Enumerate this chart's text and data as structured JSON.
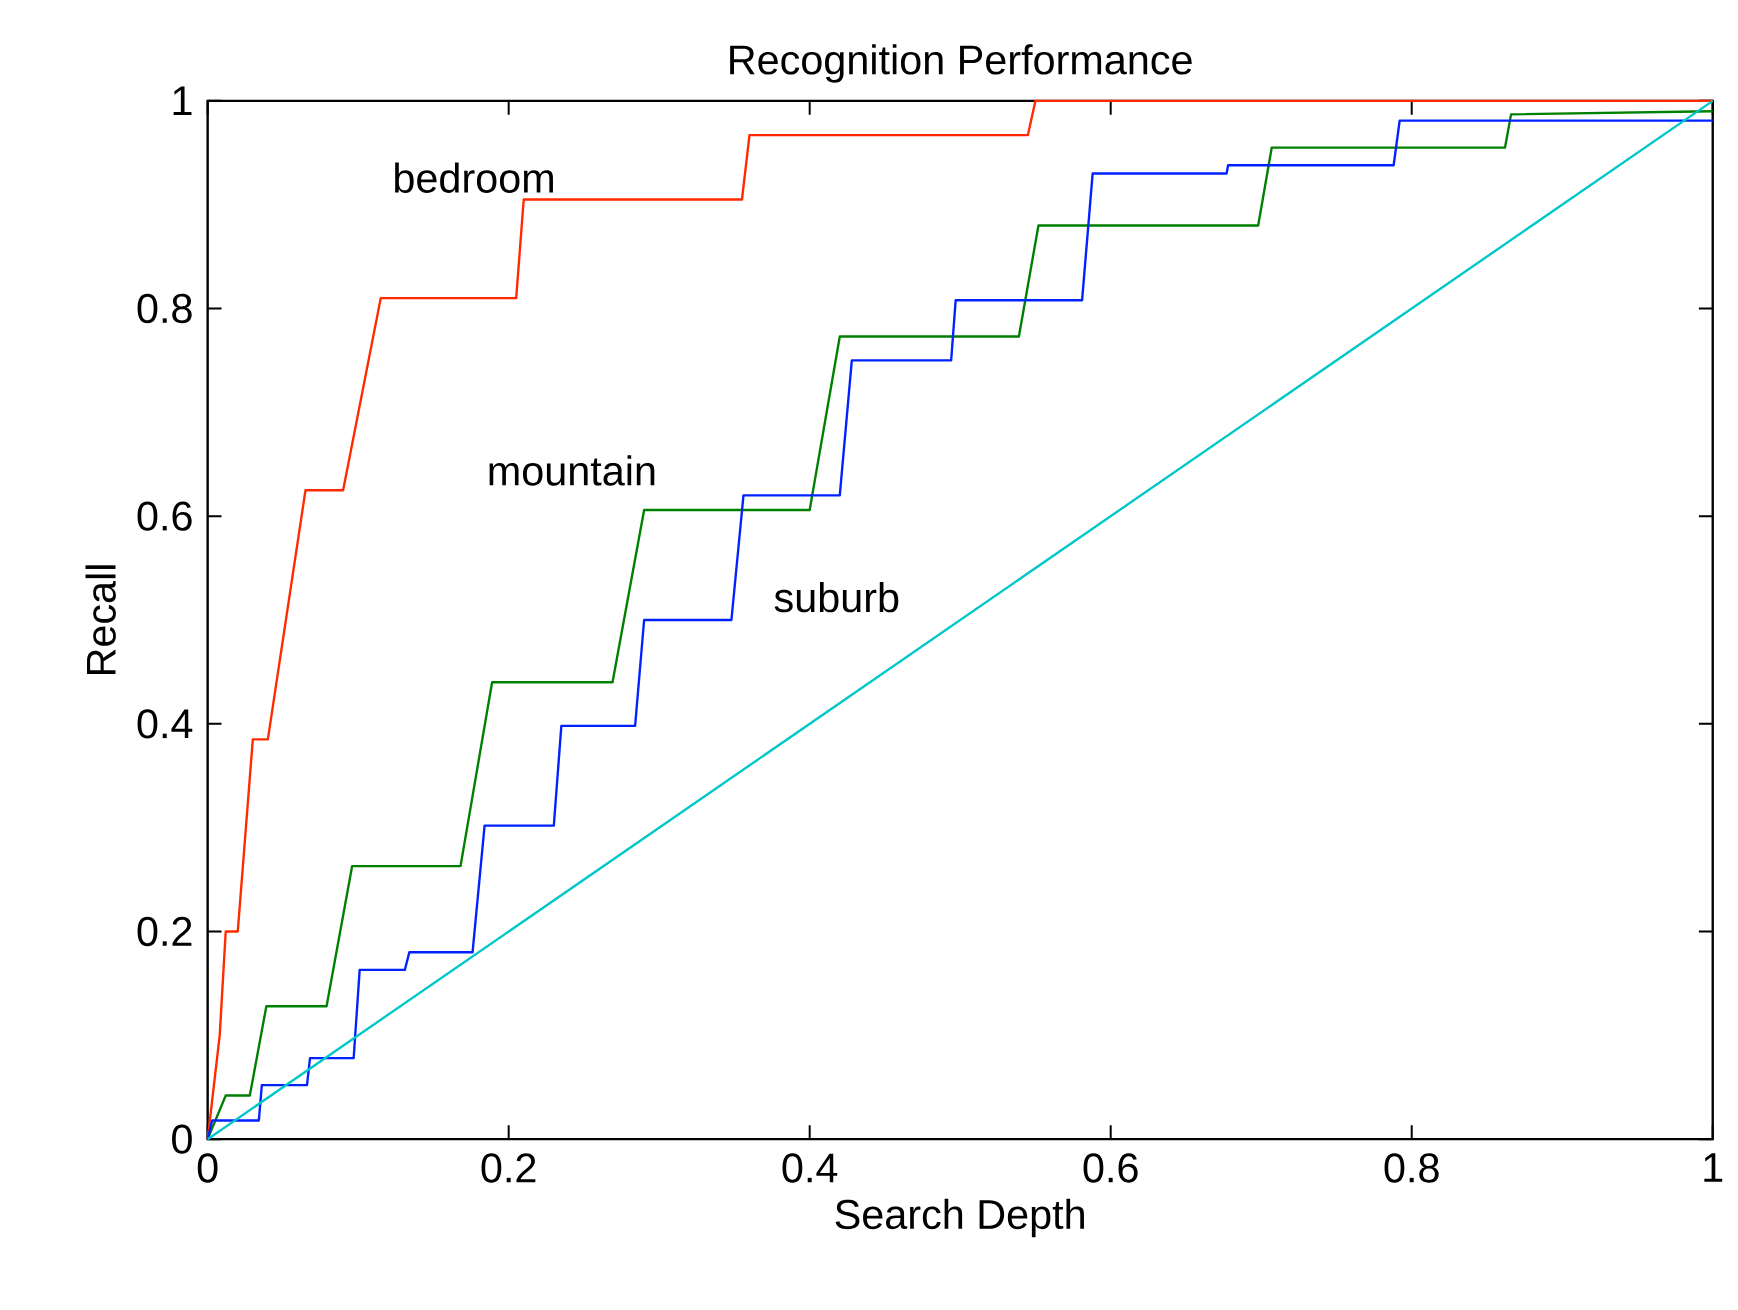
{
  "chart_data": {
    "type": "line",
    "title": "Recognition Performance",
    "xlabel": "Search Depth",
    "ylabel": "Recall",
    "xlim": [
      0,
      1
    ],
    "ylim": [
      0,
      1
    ],
    "xticks": [
      0,
      0.2,
      0.4,
      0.6,
      0.8,
      1
    ],
    "yticks": [
      0,
      0.2,
      0.4,
      0.6,
      0.8,
      1
    ],
    "grid": false,
    "legend": false,
    "series": [
      {
        "name": "bedroom",
        "color": "#ff2a00",
        "x": [
          0,
          0.008,
          0.012,
          0.02,
          0.03,
          0.04,
          0.065,
          0.09,
          0.115,
          0.205,
          0.21,
          0.355,
          0.36,
          0.545,
          0.55,
          1
        ],
        "values": [
          0,
          0.1,
          0.2,
          0.2,
          0.385,
          0.385,
          0.625,
          0.625,
          0.81,
          0.81,
          0.905,
          0.905,
          0.967,
          0.967,
          1,
          1
        ]
      },
      {
        "name": "mountain",
        "color": "#008000",
        "x": [
          0,
          0.012,
          0.028,
          0.039,
          0.079,
          0.096,
          0.168,
          0.189,
          0.269,
          0.29,
          0.4,
          0.42,
          0.539,
          0.552,
          0.698,
          0.707,
          0.862,
          0.866,
          1
        ],
        "values": [
          0,
          0.042,
          0.042,
          0.128,
          0.128,
          0.263,
          0.263,
          0.44,
          0.44,
          0.606,
          0.606,
          0.773,
          0.773,
          0.88,
          0.88,
          0.955,
          0.955,
          0.987,
          0.99
        ]
      },
      {
        "name": "suburb",
        "color": "#0022ff",
        "x": [
          0,
          0.003,
          0.034,
          0.036,
          0.066,
          0.068,
          0.097,
          0.101,
          0.131,
          0.134,
          0.176,
          0.184,
          0.23,
          0.235,
          0.284,
          0.29,
          0.348,
          0.356,
          0.42,
          0.428,
          0.494,
          0.497,
          0.581,
          0.588,
          0.677,
          0.678,
          0.788,
          0.792,
          1
        ],
        "values": [
          0,
          0.018,
          0.018,
          0.052,
          0.052,
          0.078,
          0.078,
          0.163,
          0.163,
          0.18,
          0.18,
          0.302,
          0.302,
          0.398,
          0.398,
          0.5,
          0.5,
          0.62,
          0.62,
          0.75,
          0.75,
          0.808,
          0.808,
          0.93,
          0.93,
          0.938,
          0.938,
          0.981,
          0.981
        ]
      },
      {
        "color": "#00c8c8",
        "x": [
          0,
          1
        ],
        "values": [
          0,
          1
        ]
      }
    ]
  }
}
